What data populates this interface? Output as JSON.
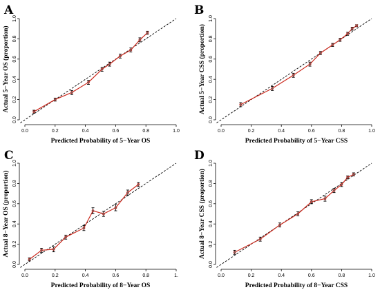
{
  "colors": {
    "calibration": "#cc2a1e",
    "ideal": "#000000",
    "point": "#7a5c5c",
    "axis": "#000000"
  },
  "chart_data": [
    {
      "panel": "A",
      "type": "line",
      "xlabel": "Predicted Probability of 5−Year OS",
      "ylabel": "Actual 5−Year OS (proportion)",
      "xlim": [
        0,
        1
      ],
      "ylim": [
        0,
        1
      ],
      "xticks": [
        "0.0",
        "0.2",
        "0.4",
        "0.6",
        "0.8",
        "1.0"
      ],
      "yticks": [
        "0.0",
        "0.2",
        "0.4",
        "0.6",
        "0.8",
        "1.0"
      ],
      "ideal_line": true,
      "x": [
        0.06,
        0.2,
        0.31,
        0.42,
        0.51,
        0.56,
        0.63,
        0.7,
        0.76,
        0.81
      ],
      "y": [
        0.08,
        0.2,
        0.27,
        0.37,
        0.5,
        0.55,
        0.63,
        0.69,
        0.79,
        0.86
      ],
      "err": [
        0.015,
        0.015,
        0.02,
        0.02,
        0.02,
        0.02,
        0.02,
        0.02,
        0.02,
        0.015
      ]
    },
    {
      "panel": "B",
      "type": "line",
      "xlabel": "Predicted Probability of 5−Year CSS",
      "ylabel": "Actual 5−Year CSS (proportion)",
      "xlim": [
        0,
        1
      ],
      "ylim": [
        0,
        1
      ],
      "xticks": [
        "0.0",
        "0.2",
        "0.4",
        "0.6",
        "0.8",
        "1.0"
      ],
      "yticks": [
        "0.0",
        "0.2",
        "0.4",
        "0.6",
        "0.8",
        "1.0"
      ],
      "ideal_line": true,
      "x": [
        0.13,
        0.34,
        0.48,
        0.59,
        0.66,
        0.74,
        0.79,
        0.84,
        0.87,
        0.9
      ],
      "y": [
        0.15,
        0.31,
        0.44,
        0.55,
        0.66,
        0.74,
        0.79,
        0.85,
        0.9,
        0.93
      ],
      "err": [
        0.02,
        0.02,
        0.02,
        0.02,
        0.015,
        0.015,
        0.015,
        0.015,
        0.015,
        0.01
      ]
    },
    {
      "panel": "C",
      "type": "line",
      "xlabel": "Predicted Probability of 8−Year OS",
      "ylabel": "Actual 8−Year OS (proportion)",
      "xlim": [
        0,
        1
      ],
      "ylim": [
        0,
        1
      ],
      "xticks": [
        "0.0",
        "0.2",
        "0.4",
        "0.6",
        "0.8",
        "1."
      ],
      "yticks": [
        "0.0",
        "0.2",
        "0.4",
        "0.6",
        "0.8",
        "1.0"
      ],
      "ideal_line": true,
      "x": [
        0.03,
        0.11,
        0.19,
        0.27,
        0.39,
        0.45,
        0.52,
        0.6,
        0.68,
        0.75
      ],
      "y": [
        0.05,
        0.14,
        0.15,
        0.27,
        0.36,
        0.53,
        0.5,
        0.56,
        0.71,
        0.79
      ],
      "err": [
        0.015,
        0.02,
        0.025,
        0.02,
        0.025,
        0.03,
        0.025,
        0.03,
        0.025,
        0.02
      ]
    },
    {
      "panel": "D",
      "type": "line",
      "xlabel": "Predicted Probability of 8−Year CSS",
      "ylabel": "Actual 8−Year CSS (proportion)",
      "xlim": [
        0,
        1
      ],
      "ylim": [
        0,
        1
      ],
      "xticks": [
        "0.0",
        "0.2",
        "0.4",
        "0.6",
        "0.8",
        "1.0"
      ],
      "yticks": [
        "0.0",
        "0.2",
        "0.4",
        "0.6",
        "0.8",
        "1.0"
      ],
      "ideal_line": true,
      "x": [
        0.09,
        0.26,
        0.39,
        0.51,
        0.6,
        0.69,
        0.75,
        0.8,
        0.84,
        0.88
      ],
      "y": [
        0.12,
        0.25,
        0.39,
        0.5,
        0.62,
        0.65,
        0.73,
        0.79,
        0.86,
        0.89
      ],
      "err": [
        0.02,
        0.02,
        0.02,
        0.02,
        0.02,
        0.025,
        0.02,
        0.02,
        0.015,
        0.015
      ]
    }
  ]
}
